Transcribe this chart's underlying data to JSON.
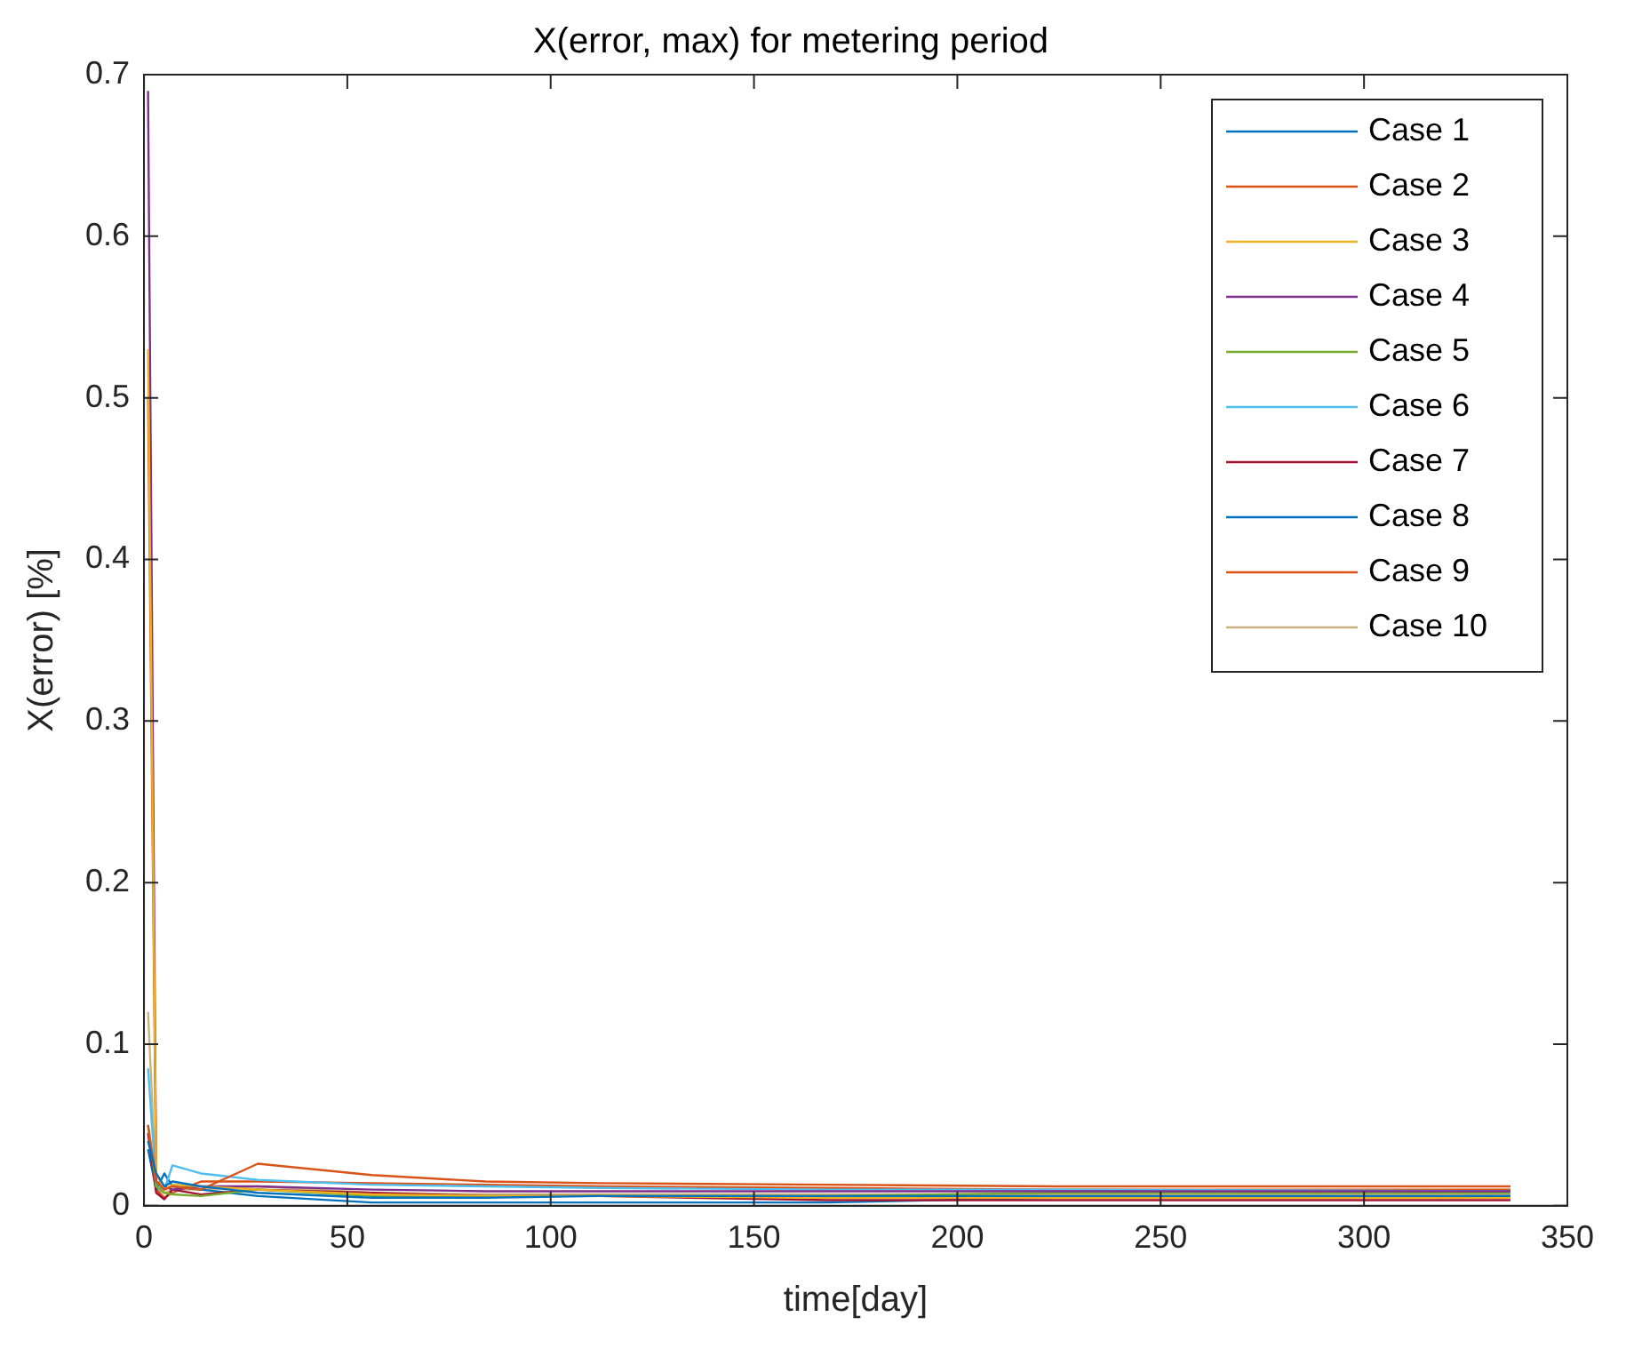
{
  "chart_data": {
    "type": "line",
    "title": "X(error, max) for metering period",
    "xlabel": "time[day]",
    "ylabel": "X(error) [%]",
    "x": [
      1,
      3,
      5,
      7,
      14,
      28,
      56,
      84,
      112,
      168,
      224,
      336
    ],
    "xlim": [
      0,
      350
    ],
    "xticks": [
      0,
      50,
      100,
      150,
      200,
      250,
      300,
      350
    ],
    "ylim": [
      0,
      0.7
    ],
    "yticks": [
      0,
      0.1,
      0.2,
      0.3,
      0.4,
      0.5,
      0.6,
      0.7
    ],
    "grid": false,
    "legend": "top right",
    "marker": "none",
    "line_style": "solid",
    "series": [
      {
        "name": "Case 1",
        "color": "#0072bd",
        "values": [
          0.04,
          0.02,
          0.012,
          0.015,
          0.012,
          0.008,
          0.005,
          0.005,
          0.006,
          0.006,
          0.006,
          0.006
        ]
      },
      {
        "name": "Case 2",
        "color": "#d95319",
        "values": [
          0.05,
          0.015,
          0.01,
          0.012,
          0.01,
          0.026,
          0.019,
          0.015,
          0.014,
          0.013,
          0.012,
          0.012
        ]
      },
      {
        "name": "Case 3",
        "color": "#edb120",
        "values": [
          0.53,
          0.02,
          0.01,
          0.013,
          0.012,
          0.01,
          0.007,
          0.006,
          0.006,
          0.005,
          0.005,
          0.005
        ]
      },
      {
        "name": "Case 4",
        "color": "#7e2f8e",
        "values": [
          0.69,
          0.015,
          0.012,
          0.01,
          0.012,
          0.012,
          0.01,
          0.009,
          0.009,
          0.009,
          0.009,
          0.009
        ]
      },
      {
        "name": "Case 5",
        "color": "#77ac30",
        "values": [
          0.05,
          0.012,
          0.008,
          0.007,
          0.006,
          0.01,
          0.006,
          0.006,
          0.006,
          0.006,
          0.008,
          0.008
        ]
      },
      {
        "name": "Case 6",
        "color": "#4dbeee",
        "values": [
          0.085,
          0.012,
          0.01,
          0.025,
          0.02,
          0.016,
          0.013,
          0.012,
          0.011,
          0.01,
          0.01,
          0.009
        ]
      },
      {
        "name": "Case 7",
        "color": "#a2142f",
        "values": [
          0.045,
          0.008,
          0.004,
          0.01,
          0.007,
          0.01,
          0.008,
          0.006,
          0.006,
          0.0035,
          0.0035,
          0.0035
        ]
      },
      {
        "name": "Case 8",
        "color": "#0072bd",
        "values": [
          0.035,
          0.01,
          0.02,
          0.012,
          0.01,
          0.006,
          0.002,
          0.002,
          0.002,
          0.002,
          0.005,
          0.006
        ]
      },
      {
        "name": "Case 9",
        "color": "#d95319",
        "values": [
          0.5,
          0.01,
          0.005,
          0.008,
          0.015,
          0.015,
          0.014,
          0.013,
          0.012,
          0.011,
          0.01,
          0.01
        ]
      },
      {
        "name": "Case 10",
        "color": "#c9b27c",
        "values": [
          0.12,
          0.01,
          0.008,
          0.01,
          0.01,
          0.012,
          0.008,
          0.007,
          0.007,
          0.007,
          0.007,
          0.007
        ]
      }
    ]
  }
}
